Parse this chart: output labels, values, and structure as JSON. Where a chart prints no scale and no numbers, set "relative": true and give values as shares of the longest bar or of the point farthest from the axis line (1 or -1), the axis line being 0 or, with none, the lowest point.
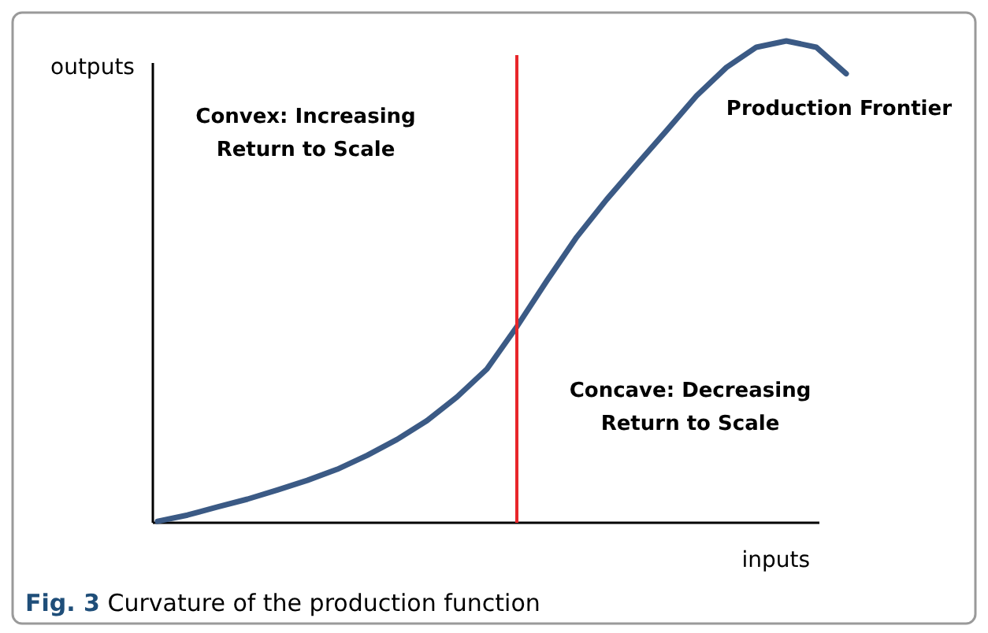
{
  "chart_data": {
    "type": "line",
    "relative": true,
    "xlabel": "inputs",
    "ylabel": "outputs",
    "marker": "none",
    "line_style": "solid",
    "categories": [
      null,
      null,
      null,
      null,
      null,
      null,
      null,
      null,
      null,
      null,
      null,
      null,
      null,
      null,
      null,
      null,
      null,
      null,
      null,
      null,
      null,
      null,
      null,
      null
    ],
    "series": [
      {
        "name": "Production Frontier",
        "color": "#3b5a85",
        "values": [
          0.003,
          0.016,
          0.033,
          0.049,
          0.068,
          0.088,
          0.111,
          0.14,
          0.173,
          0.212,
          0.261,
          0.319,
          0.407,
          0.502,
          0.593,
          0.671,
          0.743,
          0.814,
          0.886,
          0.945,
          0.987,
          1,
          0.987,
          0.932
        ]
      }
    ],
    "annotations": [
      "Convex: Increasing Return to Scale",
      "Concave: Decreasing Return to Scale",
      "Fig. 3 Curvature of the production function"
    ]
  }
}
